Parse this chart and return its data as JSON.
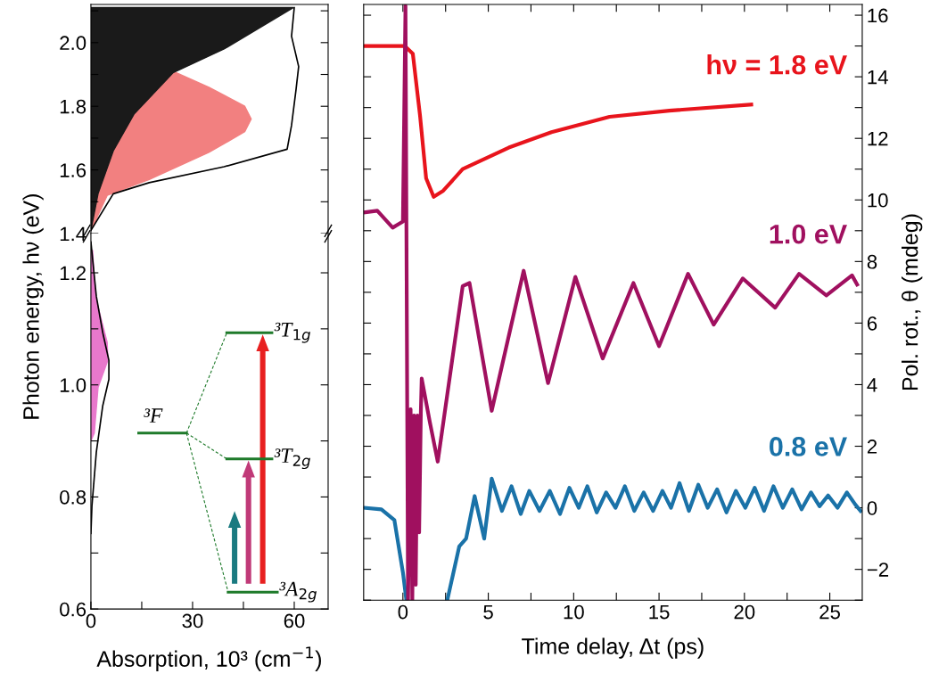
{
  "chart_data": [
    {
      "type": "area",
      "orientation": "horizontal",
      "xlim": [
        0,
        70
      ],
      "ylim": [
        1.4,
        2.12
      ],
      "tick_labels": "y",
      "yticks": [
        1.4,
        {
          "value": 1.5,
          "label": null
        },
        1.6,
        {
          "value": 1.7,
          "label": null
        },
        1.8,
        {
          "value": 1.9,
          "label": null
        },
        {
          "value": 2.0,
          "label": "2.0"
        },
        {
          "value": 2.1,
          "label": null
        }
      ],
      "series": [
        {
          "type": "area",
          "color": "#f28080",
          "x": [
            1.41,
            1.52,
            1.57,
            1.655,
            1.72,
            1.76,
            1.8,
            1.86,
            1.91
          ],
          "values": [
            0,
            4.8,
            17.2,
            34.8,
            45.4,
            47.3,
            45.4,
            34.8,
            24.2
          ]
        },
        {
          "type": "area",
          "color": "#1a1a1a",
          "x": [
            1.41,
            1.525,
            1.66,
            1.775,
            1.905,
            1.98,
            2.11
          ],
          "values": [
            0,
            2.1,
            6.6,
            12.7,
            24.2,
            39.3,
            59.7
          ]
        },
        {
          "type": "line",
          "color": "#000000",
          "x": [
            1.41,
            1.525,
            1.56,
            1.61,
            1.665,
            1.74,
            1.85,
            1.925,
            2.02,
            2.11
          ],
          "values": [
            0,
            6.6,
            17.2,
            39.3,
            57.9,
            59.2,
            60.5,
            61.3,
            59.2,
            60
          ]
        }
      ]
    },
    {
      "type": "area",
      "orientation": "horizontal",
      "xlim": [
        0,
        70
      ],
      "ylim": [
        0.6,
        1.27
      ],
      "xlabel": "Absorption, 10³ (cm$^{−1}$)",
      "ylabel": "Photon energy, hν (eV)",
      "xticks": [
        0,
        {
          "value": 15,
          "label": null
        },
        30,
        {
          "value": 45,
          "label": null
        },
        60
      ],
      "yticks": [
        0.6,
        {
          "value": 0.7,
          "label": null
        },
        0.8,
        {
          "value": 0.9,
          "label": null
        },
        {
          "value": 1.0,
          "label": "1.0"
        },
        {
          "value": 1.1,
          "label": null
        },
        1.2
      ],
      "annotations": [
        "³F",
        "³T$_{1g}$",
        "³T$_{2g}$",
        "³A$_{2g}$"
      ],
      "series": [
        {
          "type": "area",
          "color": "#e878cc",
          "x": [
            0.9,
            0.914,
            0.995,
            1.044,
            1.076,
            1.158,
            1.24
          ],
          "values": [
            0,
            1.0,
            2.1,
            5.0,
            4.8,
            1.3,
            0.5
          ]
        },
        {
          "type": "line",
          "color": "#000000",
          "x": [
            0.735,
            0.784,
            0.88,
            0.963,
            1.01,
            1.044,
            1.093,
            1.158,
            1.255
          ],
          "values": [
            0,
            0.3,
            1.6,
            3.5,
            5.3,
            5.3,
            3.5,
            1.6,
            0
          ]
        }
      ]
    },
    {
      "type": "line",
      "xlim": [
        -2.3,
        26.9
      ],
      "y2lim": [
        -3,
        16.35
      ],
      "xlabel": "Time delay, Δt (ps)",
      "y2label": "Pol. rot., θ (mdeg)",
      "xticks": [
        0,
        {
          "value": 2.5,
          "label": null
        },
        5,
        {
          "value": 7.5,
          "label": null
        },
        10,
        {
          "value": 12.5,
          "label": null
        },
        15,
        {
          "value": 17.5,
          "label": null
        },
        20,
        {
          "value": 22.5,
          "label": null
        },
        25
      ],
      "y2ticks": [
        {
          "value": -3,
          "label": null
        },
        {
          "value": -2,
          "label": "−2"
        },
        {
          "value": -1,
          "label": null
        },
        0,
        {
          "value": 1,
          "label": null
        },
        2,
        {
          "value": 3,
          "label": null
        },
        4,
        {
          "value": 5,
          "label": null
        },
        6,
        {
          "value": 7,
          "label": null
        },
        8,
        {
          "value": 9,
          "label": null
        },
        10,
        {
          "value": 11,
          "label": null
        },
        12,
        {
          "value": 13,
          "label": null
        },
        14,
        {
          "value": 15,
          "label": null
        },
        16
      ],
      "series": [
        {
          "name": "hν = 1.8 eV",
          "axis": "y2",
          "color": "#e8141c",
          "x": [
            -2.2,
            0.1,
            0.58,
            1.0,
            1.36,
            1.8,
            2.36,
            3.5,
            6.2,
            8.7,
            12.1,
            15.6,
            20.4
          ],
          "values": [
            15.0,
            15.0,
            14.75,
            12.75,
            10.7,
            10.1,
            10.3,
            11.0,
            11.7,
            12.2,
            12.7,
            12.9,
            13.1
          ]
        },
        {
          "name": "0.8 eV",
          "axis": "y2",
          "color": "#1a72a8",
          "x": [
            -2.3,
            -1.26,
            -0.5,
            0,
            0.2,
            1.4,
            2.6,
            3.3,
            3.7,
            4.2,
            4.76,
            5.2,
            5.8,
            6.36,
            6.9,
            7.4,
            8.0,
            8.6,
            9.2,
            9.75,
            10.3,
            10.8,
            11.35,
            11.9,
            12.45,
            13.0,
            13.55,
            14.1,
            14.65,
            15.2,
            15.7,
            16.2,
            16.75,
            17.3,
            17.85,
            18.4,
            18.95,
            19.5,
            20.05,
            20.6,
            21.15,
            21.7,
            22.25,
            22.8,
            23.35,
            23.9,
            24.4,
            24.9,
            25.45,
            26.0,
            26.5,
            26.8
          ],
          "values": [
            0,
            -0.05,
            -0.4,
            -2.1,
            -3,
            null,
            -3,
            -1.25,
            -1.0,
            0.38,
            -1.0,
            0.95,
            -0.1,
            0.7,
            -0.2,
            0.55,
            -0.1,
            0.55,
            -0.2,
            0.65,
            0.0,
            0.7,
            -0.15,
            0.5,
            0.0,
            0.7,
            -0.1,
            0.5,
            -0.1,
            0.55,
            0.0,
            0.8,
            -0.1,
            0.75,
            0.0,
            0.6,
            -0.15,
            0.55,
            0.0,
            0.65,
            -0.1,
            0.7,
            0.0,
            0.6,
            -0.05,
            0.5,
            0.05,
            0.4,
            0.0,
            0.5,
            0.1,
            -0.1
          ]
        },
        {
          "name": "1.0 eV",
          "axis": "y2",
          "color": "#a0105f",
          "x": [
            -2.2,
            -1.5,
            -0.6,
            0,
            0.15,
            0.3,
            0.45,
            0.55,
            0.65,
            0.75,
            0.85,
            0.95,
            1.05,
            1.1,
            1.57,
            2.04,
            3.5,
            3.9,
            5.2,
            7.07,
            8.5,
            10.1,
            11.7,
            13.5,
            15.0,
            16.7,
            18.2,
            19.9,
            21.8,
            23.2,
            24.8,
            26.3,
            26.6
          ],
          "values": [
            9.6,
            9.65,
            9.1,
            9.3,
            16.3,
            -3,
            3.2,
            -3,
            3.0,
            -2.5,
            3.0,
            -0.8,
            3.1,
            4.2,
            2.8,
            1.5,
            7.2,
            7.3,
            3.15,
            7.7,
            4.05,
            7.5,
            4.85,
            7.3,
            5.25,
            7.6,
            5.95,
            7.45,
            6.5,
            7.6,
            6.9,
            7.55,
            7.25
          ]
        }
      ]
    }
  ]
}
